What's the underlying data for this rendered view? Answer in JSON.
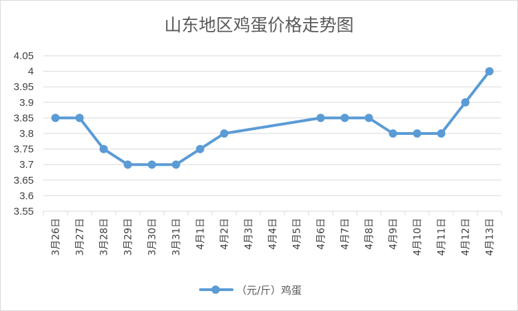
{
  "chart_data": {
    "type": "line",
    "title": "山东地区鸡蛋价格走势图",
    "categories": [
      "3月26日",
      "3月27日",
      "3月28日",
      "3月29日",
      "3月30日",
      "3月31日",
      "4月1日",
      "4月2日",
      "4月3日",
      "4月4日",
      "4月5日",
      "4月6日",
      "4月7日",
      "4月8日",
      "4月9日",
      "4月10日",
      "4月11日",
      "4月12日",
      "4月13日"
    ],
    "series": [
      {
        "name": "（元/斤）鸡蛋",
        "color": "#5b9bd5",
        "values": [
          3.85,
          3.85,
          3.75,
          3.7,
          3.7,
          3.7,
          3.75,
          3.8,
          null,
          null,
          null,
          3.85,
          3.85,
          3.85,
          3.8,
          3.8,
          3.8,
          3.9,
          4.0
        ]
      }
    ],
    "ylim": [
      3.55,
      4.05
    ],
    "yticks": [
      "4.05",
      "4",
      "3.95",
      "3.9",
      "3.85",
      "3.8",
      "3.75",
      "3.7",
      "3.65",
      "3.6",
      "3.55"
    ],
    "grid": true,
    "legend": "bottom"
  }
}
